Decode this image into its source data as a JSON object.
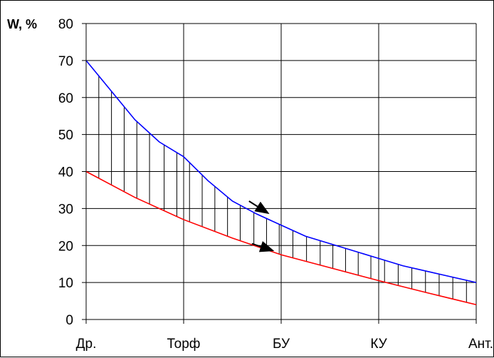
{
  "chart_data": {
    "type": "line",
    "title": "",
    "xlabel": "",
    "ylabel": "W, %",
    "categories": [
      "Др.",
      "Торф",
      "БУ",
      "КУ",
      "Ант."
    ],
    "xlim": [
      0,
      4
    ],
    "ylim": [
      0,
      80
    ],
    "yticks": [
      0,
      10,
      20,
      30,
      40,
      50,
      60,
      70,
      80
    ],
    "grid": true,
    "legend": "none",
    "series": [
      {
        "color": "#0000ff",
        "x": [
          0,
          0.25,
          0.5,
          0.75,
          1.0,
          1.25,
          1.5,
          1.75,
          2.0,
          2.25,
          2.5,
          2.75,
          3.0,
          3.25,
          3.5,
          3.75,
          4.0
        ],
        "y": [
          70,
          62,
          54,
          48,
          44,
          37.5,
          32,
          28.5,
          25.5,
          22.5,
          20.5,
          18.5,
          16.5,
          14.5,
          13,
          11.5,
          10
        ]
      },
      {
        "color": "#ff0000",
        "x": [
          0,
          0.5,
          1.0,
          1.5,
          2.0,
          2.5,
          3.0,
          3.5,
          4.0
        ],
        "y": [
          40,
          33,
          27,
          22,
          17.5,
          14,
          10.5,
          7.2,
          4
        ]
      }
    ],
    "hatch": {
      "color": "#000000",
      "x": [
        0,
        0.13,
        0.26,
        0.39,
        0.52,
        0.65,
        0.8,
        0.93,
        1.06,
        1.19,
        1.32,
        1.45,
        1.58,
        1.72,
        1.85,
        1.98,
        2.12,
        2.26,
        2.4,
        2.53,
        2.66,
        2.79,
        2.92,
        3.06,
        3.2,
        3.34,
        3.48,
        3.62,
        3.76,
        3.9
      ]
    },
    "arrows": [
      {
        "from": [
          1.67,
          32
        ],
        "to": [
          1.88,
          28.5
        ]
      },
      {
        "from": [
          1.7,
          20.5
        ],
        "to": [
          1.93,
          18.5
        ]
      }
    ]
  }
}
